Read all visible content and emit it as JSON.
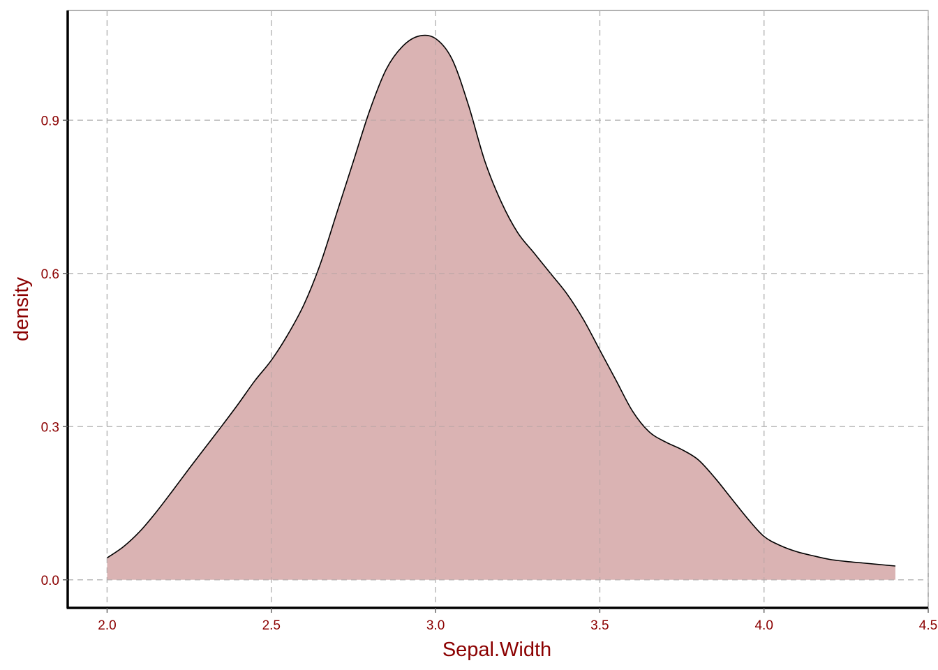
{
  "chart_data": {
    "type": "area",
    "title": "",
    "xlabel": "Sepal.Width",
    "ylabel": "density",
    "xlim": [
      1.88,
      4.5
    ],
    "ylim": [
      -0.055,
      1.115
    ],
    "x_ticks": [
      "2.0",
      "2.5",
      "3.0",
      "3.5",
      "4.0",
      "4.5"
    ],
    "y_ticks": [
      "0.0",
      "0.3",
      "0.6",
      "0.9"
    ],
    "grid": true,
    "grid_style": "dashed",
    "legend": "none",
    "colors": {
      "fill": "#dab3b3",
      "line": "#000000",
      "text": "#8b0000",
      "grid": "#cccccc",
      "axis": "#000000",
      "panel_border": "#666666"
    },
    "series": [
      {
        "x": [
          2.0,
          2.05,
          2.1,
          2.15,
          2.2,
          2.25,
          2.3,
          2.35,
          2.4,
          2.45,
          2.5,
          2.55,
          2.6,
          2.65,
          2.7,
          2.75,
          2.8,
          2.85,
          2.9,
          2.95,
          3.0,
          3.05,
          3.1,
          3.15,
          3.2,
          3.25,
          3.3,
          3.35,
          3.4,
          3.45,
          3.5,
          3.55,
          3.6,
          3.65,
          3.7,
          3.75,
          3.8,
          3.85,
          3.9,
          3.95,
          4.0,
          4.05,
          4.1,
          4.15,
          4.2,
          4.25,
          4.3,
          4.35,
          4.4
        ],
        "values": [
          0.043,
          0.065,
          0.095,
          0.133,
          0.175,
          0.218,
          0.26,
          0.302,
          0.345,
          0.39,
          0.43,
          0.48,
          0.54,
          0.62,
          0.72,
          0.82,
          0.92,
          1.0,
          1.045,
          1.065,
          1.06,
          1.02,
          0.93,
          0.82,
          0.74,
          0.68,
          0.64,
          0.6,
          0.56,
          0.51,
          0.45,
          0.39,
          0.33,
          0.29,
          0.27,
          0.255,
          0.235,
          0.2,
          0.16,
          0.12,
          0.085,
          0.067,
          0.055,
          0.047,
          0.04,
          0.036,
          0.033,
          0.03,
          0.027
        ]
      }
    ]
  }
}
